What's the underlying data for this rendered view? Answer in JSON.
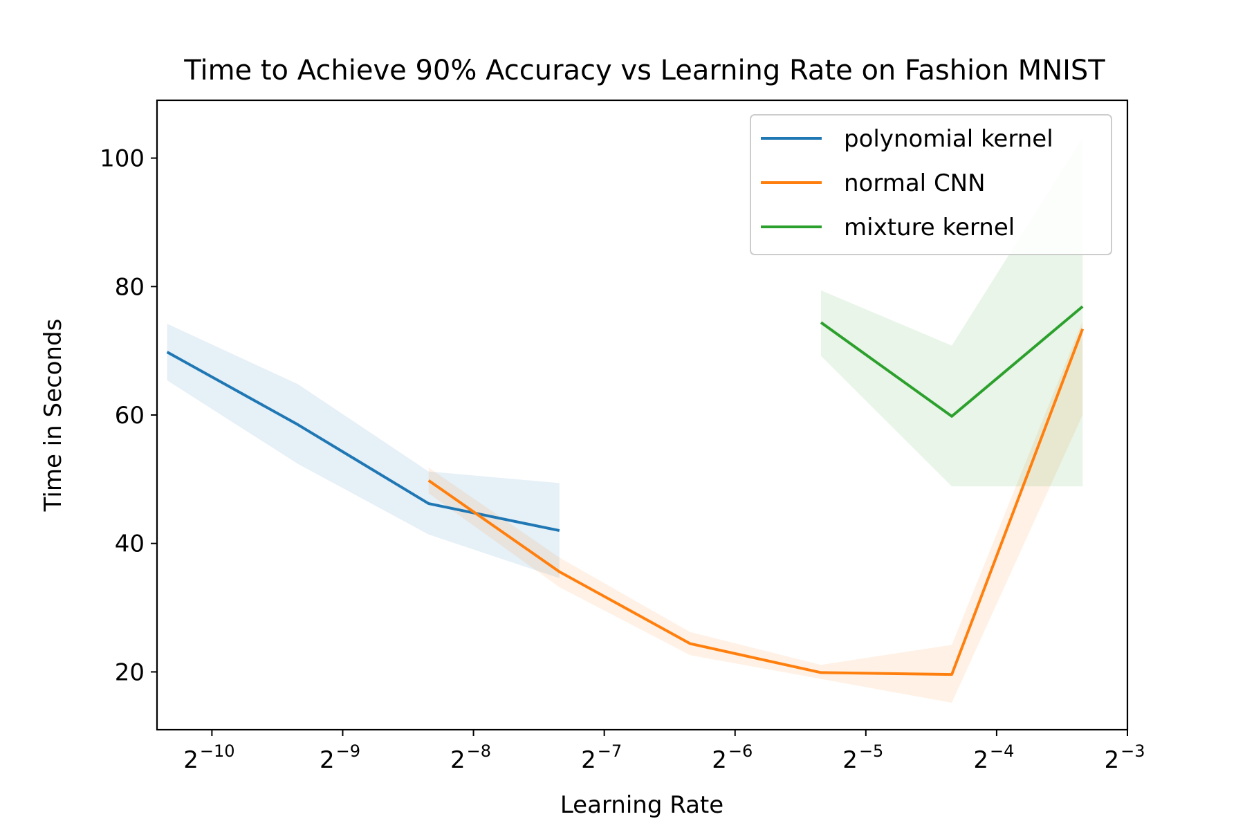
{
  "chart_data": {
    "type": "line",
    "title": "Time to Achieve 90% Accuracy vs Learning Rate on Fashion MNIST",
    "xlabel": "Learning Rate",
    "ylabel": "Time in Seconds",
    "xscale": "log2",
    "xlim": [
      0.00073,
      0.125
    ],
    "ylim": [
      11,
      109
    ],
    "x_ticks": [
      {
        "base": "2",
        "exp": "−10",
        "value": 0.0009765625
      },
      {
        "base": "2",
        "exp": "−9",
        "value": 0.001953125
      },
      {
        "base": "2",
        "exp": "−8",
        "value": 0.00390625
      },
      {
        "base": "2",
        "exp": "−7",
        "value": 0.0078125
      },
      {
        "base": "2",
        "exp": "−6",
        "value": 0.015625
      },
      {
        "base": "2",
        "exp": "−5",
        "value": 0.03125
      },
      {
        "base": "2",
        "exp": "−4",
        "value": 0.0625
      },
      {
        "base": "2",
        "exp": "−3",
        "value": 0.125
      }
    ],
    "y_ticks": [
      20,
      40,
      60,
      80,
      100
    ],
    "grid": false,
    "legend_position": "top-right",
    "series": [
      {
        "name": "polynomial kernel",
        "color": "#1f77b4",
        "x": [
          0.00077,
          0.00154,
          0.00308,
          0.00616
        ],
        "y": [
          69.8,
          58.5,
          46.2,
          42.0
        ],
        "band_low": [
          65.4,
          52.4,
          41.4,
          34.6
        ],
        "band_high": [
          74.2,
          64.8,
          51.2,
          49.4
        ]
      },
      {
        "name": "normal CNN",
        "color": "#ff7f0e",
        "x": [
          0.00308,
          0.00616,
          0.01232,
          0.02464,
          0.04928,
          0.09856
        ],
        "y": [
          49.8,
          35.6,
          24.4,
          19.9,
          19.6,
          73.4
        ],
        "band_low": [
          47.8,
          33.2,
          22.6,
          18.9,
          15.2,
          60.0
        ],
        "band_high": [
          51.8,
          37.8,
          26.2,
          21.1,
          24.2,
          74.6
        ]
      },
      {
        "name": "mixture kernel",
        "color": "#2ca02c",
        "x": [
          0.02464,
          0.04928,
          0.09856
        ],
        "y": [
          74.4,
          59.8,
          76.9
        ],
        "band_low": [
          69.2,
          48.9,
          48.9
        ],
        "band_high": [
          79.4,
          70.8,
          103.2
        ]
      }
    ]
  }
}
